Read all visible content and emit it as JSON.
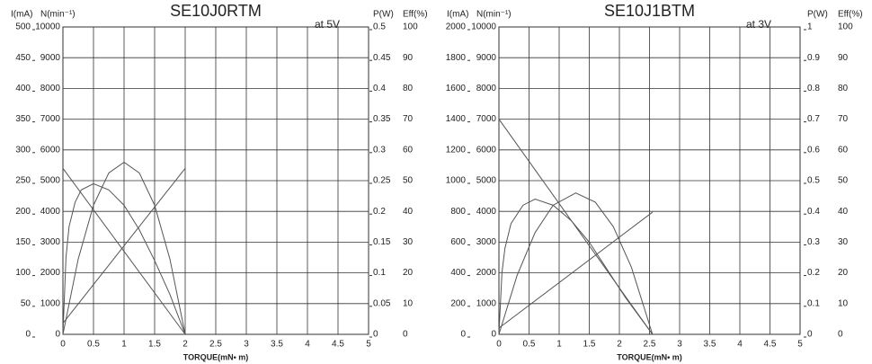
{
  "chart_data": [
    {
      "type": "line",
      "title": "SE10J0RTM",
      "subtitle": "at 5V",
      "xlabel": "TORQUE(mN• m)",
      "xlim": [
        0,
        5
      ],
      "xticks": [
        0,
        0.5,
        1,
        1.5,
        2,
        2.5,
        3,
        3.5,
        4,
        4.5,
        5
      ],
      "ylabel": "I(mA)",
      "ylim": [
        0,
        500
      ],
      "yticks": [
        0,
        50,
        100,
        150,
        200,
        250,
        300,
        350,
        400,
        450,
        500
      ],
      "y2label": "N(min⁻¹)",
      "y2lim": [
        0,
        10000
      ],
      "y2ticks": [
        0,
        1000,
        2000,
        3000,
        4000,
        5000,
        6000,
        7000,
        8000,
        9000,
        10000
      ],
      "y3label": "P(W)",
      "y3lim": [
        0,
        0.5
      ],
      "y3ticks": [
        0,
        0.05,
        0.1,
        0.15,
        0.2,
        0.25,
        0.3,
        0.35,
        0.4,
        0.45,
        0.5
      ],
      "y4label": "Eff(%)",
      "y4lim": [
        0,
        100
      ],
      "y4ticks": [
        0,
        10,
        20,
        30,
        40,
        50,
        60,
        70,
        80,
        90,
        100
      ],
      "grid": true,
      "series": [
        {
          "axis": "y2",
          "color": "#555555",
          "x": [
            0,
            2
          ],
          "values": [
            5400,
            0
          ]
        },
        {
          "axis": "y",
          "color": "#555555",
          "x": [
            0,
            2
          ],
          "values": [
            18,
            270
          ]
        },
        {
          "axis": "y3",
          "color": "#555555",
          "x": [
            0,
            0.25,
            0.5,
            0.75,
            1,
            1.25,
            1.5,
            1.75,
            2
          ],
          "values": [
            0,
            0.1225,
            0.21,
            0.2625,
            0.28,
            0.2625,
            0.21,
            0.1225,
            0
          ]
        },
        {
          "axis": "y4",
          "color": "#555555",
          "x": [
            0,
            0.05,
            0.1,
            0.2,
            0.3,
            0.5,
            0.75,
            1,
            1.25,
            1.5,
            1.75,
            2
          ],
          "values": [
            0,
            25,
            35,
            43,
            47,
            49,
            47,
            42,
            34,
            24,
            13,
            0
          ]
        }
      ]
    },
    {
      "type": "line",
      "title": "SE10J1BTM",
      "subtitle": "at 3V",
      "xlabel": "TORQUE(mN• m)",
      "xlim": [
        0,
        5
      ],
      "xticks": [
        0,
        0.5,
        1,
        1.5,
        2,
        2.5,
        3,
        3.5,
        4,
        4.5,
        5
      ],
      "ylabel": "I(mA)",
      "ylim": [
        0,
        2000
      ],
      "yticks": [
        0,
        200,
        400,
        600,
        800,
        1000,
        1200,
        1400,
        1600,
        1800,
        2000
      ],
      "y2label": "N(min⁻¹)",
      "y2lim": [
        0,
        10000
      ],
      "y2ticks": [
        0,
        1000,
        2000,
        3000,
        4000,
        5000,
        6000,
        7000,
        8000,
        9000,
        10000
      ],
      "y3label": "P(W)",
      "y3lim": [
        0,
        1
      ],
      "y3ticks": [
        0,
        0.1,
        0.2,
        0.3,
        0.4,
        0.5,
        0.6,
        0.7,
        0.8,
        0.9,
        1
      ],
      "y4label": "Eff(%)",
      "y4lim": [
        0,
        100
      ],
      "y4ticks": [
        0,
        10,
        20,
        30,
        40,
        50,
        60,
        70,
        80,
        90,
        100
      ],
      "grid": true,
      "series": [
        {
          "axis": "y2",
          "color": "#555555",
          "x": [
            0,
            2.55
          ],
          "values": [
            7000,
            0
          ]
        },
        {
          "axis": "y",
          "color": "#555555",
          "x": [
            0,
            2.55
          ],
          "values": [
            41,
            795
          ]
        },
        {
          "axis": "y3",
          "color": "#555555",
          "x": [
            0,
            0.3,
            0.6,
            0.9,
            1.275,
            1.6,
            1.9,
            2.2,
            2.55
          ],
          "values": [
            0,
            0.191,
            0.331,
            0.42,
            0.46,
            0.43,
            0.35,
            0.218,
            0
          ]
        },
        {
          "axis": "y4",
          "color": "#555555",
          "x": [
            0,
            0.05,
            0.1,
            0.2,
            0.4,
            0.6,
            0.9,
            1.2,
            1.5,
            1.8,
            2.1,
            2.4,
            2.55
          ],
          "values": [
            0,
            20,
            28,
            36,
            42,
            44,
            42,
            37,
            30,
            21,
            12,
            4,
            0
          ]
        }
      ]
    }
  ]
}
